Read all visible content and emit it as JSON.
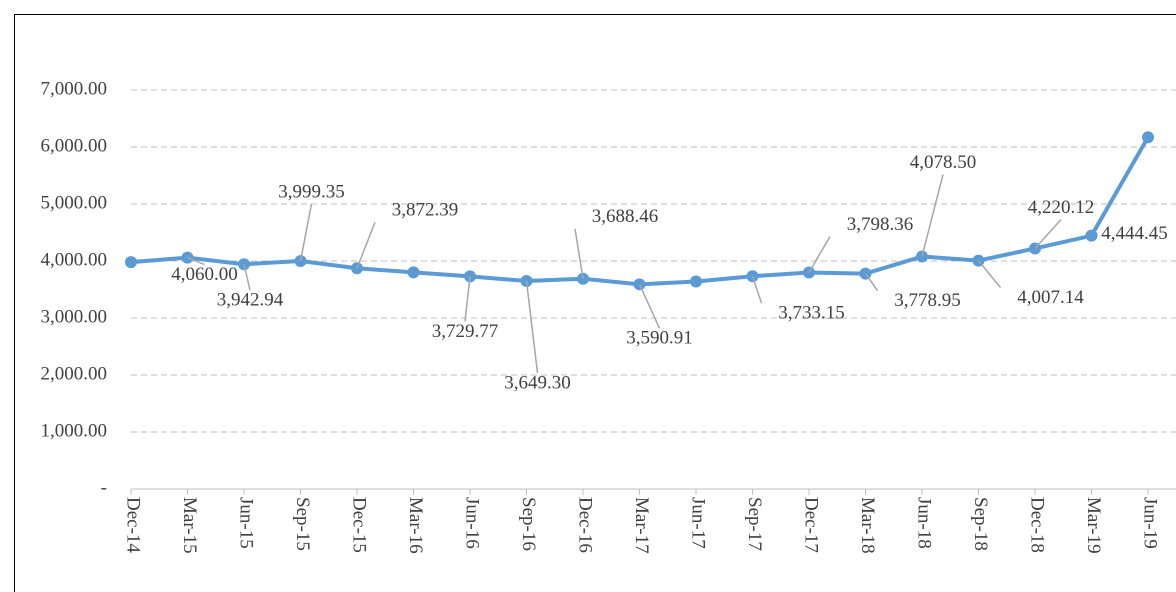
{
  "chart_data": {
    "type": "line",
    "categories": [
      "Dec-14",
      "Mar-15",
      "Jun-15",
      "Sep-15",
      "Dec-15",
      "Mar-16",
      "Jun-16",
      "Sep-16",
      "Dec-16",
      "Mar-17",
      "Jun-17",
      "Sep-17",
      "Dec-17",
      "Mar-18",
      "Jun-18",
      "Sep-18",
      "Dec-18",
      "Mar-19",
      "Jun-19"
    ],
    "series": [
      {
        "color": "#5b9bd5",
        "values": [
          3980,
          4060.0,
          3942.94,
          3999.35,
          3872.39,
          3800,
          3729.77,
          3649.3,
          3688.46,
          3590.91,
          3640,
          3733.15,
          3798.36,
          3778.95,
          4078.5,
          4007.14,
          4220.12,
          4444.45,
          6170
        ],
        "value_labels": [
          null,
          "4,060.00",
          "3,942.94",
          "3,999.35",
          "3,872.39",
          null,
          "3,729.77",
          "3,649.30",
          "3,688.46",
          "3,590.91",
          null,
          "3,733.15",
          "3,798.36",
          "3,778.95",
          "4,078.50",
          "4,007.14",
          "4,220.12",
          "4,444.45",
          null
        ]
      }
    ],
    "ylim": [
      0,
      7800
    ],
    "yticks": [
      {
        "value": 0,
        "label": "-"
      },
      {
        "value": 1000,
        "label": "1,000.00"
      },
      {
        "value": 2000,
        "label": "2,000.00"
      },
      {
        "value": 3000,
        "label": "3,000.00"
      },
      {
        "value": 4000,
        "label": "4,000.00"
      },
      {
        "value": 5000,
        "label": "5,000.00"
      },
      {
        "value": 6000,
        "label": "6,000.00"
      },
      {
        "value": 7000,
        "label": "7,000.00"
      }
    ],
    "grid": true
  }
}
